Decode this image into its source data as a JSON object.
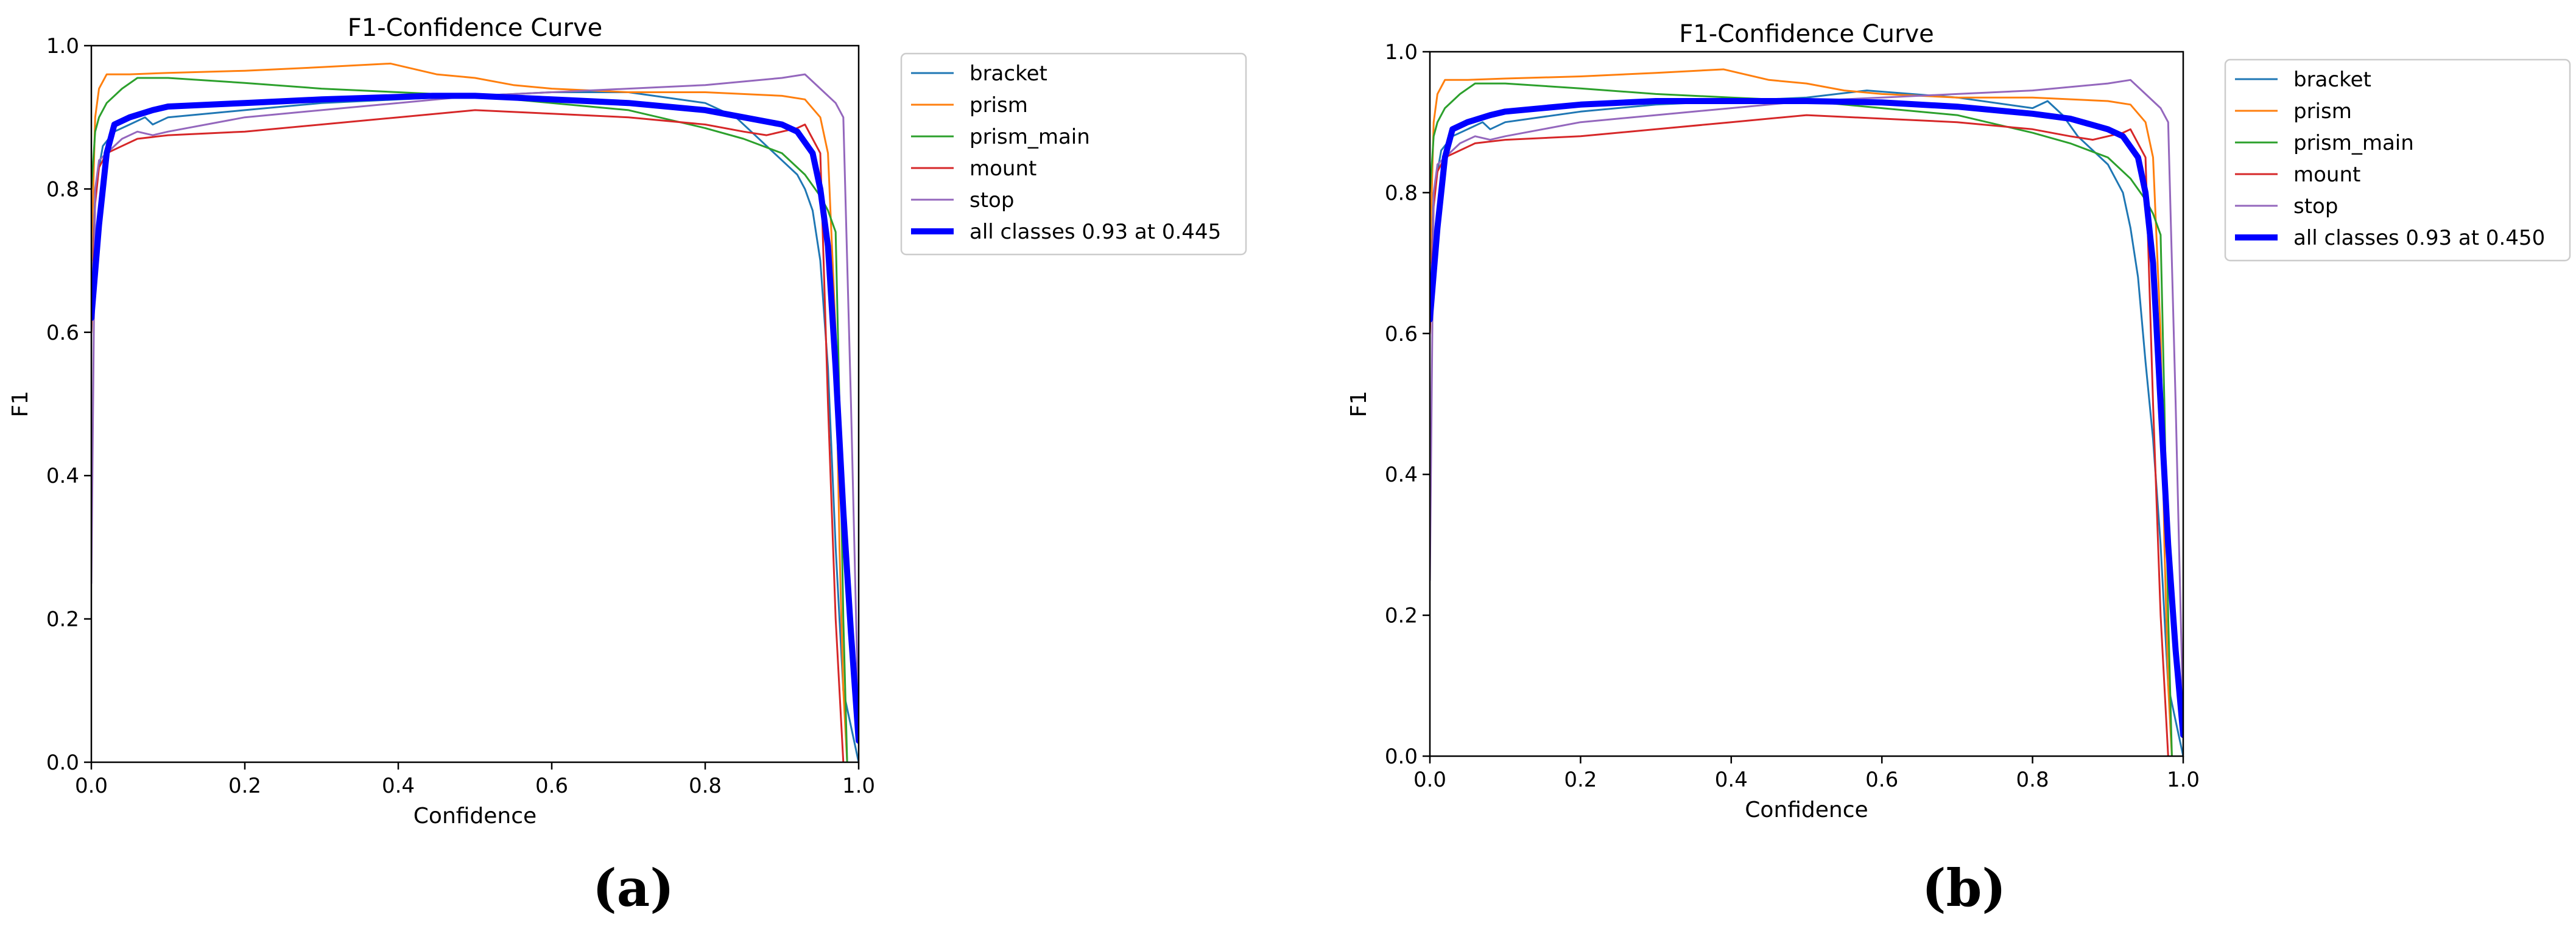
{
  "chart_data": [
    {
      "type": "line",
      "panel_label": "(a)",
      "title": "F1-Confidence Curve",
      "xlabel": "Confidence",
      "ylabel": "F1",
      "xlim": [
        0.0,
        1.0
      ],
      "ylim": [
        0.0,
        1.0
      ],
      "xticks": [
        "0.0",
        "0.2",
        "0.4",
        "0.6",
        "0.8",
        "1.0"
      ],
      "yticks": [
        "0.0",
        "0.2",
        "0.4",
        "0.6",
        "0.8",
        "1.0"
      ],
      "legend_position": "outside-top-right",
      "series": [
        {
          "name": "bracket",
          "color": "#1f77b4",
          "x": [
            0.0,
            0.005,
            0.015,
            0.03,
            0.05,
            0.07,
            0.08,
            0.1,
            0.2,
            0.3,
            0.4,
            0.5,
            0.6,
            0.7,
            0.8,
            0.82,
            0.84,
            0.86,
            0.88,
            0.9,
            0.92,
            0.93,
            0.94,
            0.95,
            0.96,
            0.97,
            0.98,
            0.99,
            1.0
          ],
          "y": [
            0.6,
            0.8,
            0.86,
            0.88,
            0.89,
            0.9,
            0.89,
            0.9,
            0.91,
            0.92,
            0.925,
            0.93,
            0.935,
            0.935,
            0.92,
            0.91,
            0.9,
            0.88,
            0.86,
            0.84,
            0.82,
            0.8,
            0.77,
            0.7,
            0.55,
            0.3,
            0.1,
            0.05,
            0.0
          ]
        },
        {
          "name": "prism",
          "color": "#ff7f0e",
          "x": [
            0.0,
            0.005,
            0.01,
            0.02,
            0.05,
            0.1,
            0.2,
            0.3,
            0.39,
            0.45,
            0.5,
            0.55,
            0.6,
            0.7,
            0.8,
            0.9,
            0.93,
            0.95,
            0.96,
            0.97,
            0.975,
            0.98,
            0.985
          ],
          "y": [
            0.7,
            0.9,
            0.94,
            0.96,
            0.96,
            0.962,
            0.965,
            0.97,
            0.975,
            0.96,
            0.955,
            0.945,
            0.94,
            0.935,
            0.935,
            0.93,
            0.925,
            0.9,
            0.85,
            0.6,
            0.3,
            0.1,
            0.0
          ]
        },
        {
          "name": "prism_main",
          "color": "#2ca02c",
          "x": [
            0.0,
            0.005,
            0.01,
            0.02,
            0.04,
            0.06,
            0.1,
            0.2,
            0.3,
            0.4,
            0.5,
            0.6,
            0.7,
            0.8,
            0.85,
            0.9,
            0.93,
            0.95,
            0.96,
            0.97,
            0.975,
            0.98,
            0.985
          ],
          "y": [
            0.8,
            0.88,
            0.9,
            0.92,
            0.94,
            0.955,
            0.955,
            0.948,
            0.94,
            0.935,
            0.93,
            0.92,
            0.91,
            0.885,
            0.87,
            0.85,
            0.82,
            0.79,
            0.77,
            0.74,
            0.5,
            0.2,
            0.0
          ]
        },
        {
          "name": "mount",
          "color": "#d62728",
          "x": [
            0.0,
            0.005,
            0.01,
            0.02,
            0.04,
            0.06,
            0.1,
            0.2,
            0.3,
            0.4,
            0.5,
            0.6,
            0.7,
            0.8,
            0.85,
            0.88,
            0.9,
            0.92,
            0.93,
            0.95,
            0.96,
            0.97,
            0.98
          ],
          "y": [
            0.6,
            0.78,
            0.83,
            0.85,
            0.86,
            0.87,
            0.875,
            0.88,
            0.89,
            0.9,
            0.91,
            0.905,
            0.9,
            0.89,
            0.88,
            0.875,
            0.88,
            0.885,
            0.89,
            0.85,
            0.5,
            0.2,
            0.0
          ]
        },
        {
          "name": "stop",
          "color": "#9467bd",
          "x": [
            0.0,
            0.005,
            0.01,
            0.02,
            0.04,
            0.06,
            0.08,
            0.1,
            0.2,
            0.3,
            0.4,
            0.5,
            0.6,
            0.7,
            0.8,
            0.9,
            0.93,
            0.95,
            0.97,
            0.98,
            0.99,
            1.0
          ],
          "y": [
            0.25,
            0.8,
            0.84,
            0.85,
            0.87,
            0.88,
            0.875,
            0.88,
            0.9,
            0.91,
            0.92,
            0.93,
            0.935,
            0.94,
            0.945,
            0.955,
            0.96,
            0.94,
            0.92,
            0.9,
            0.5,
            0.05
          ]
        },
        {
          "name": "all classes 0.93 at 0.445",
          "color": "#0000ff",
          "bold": true,
          "x": [
            0.0,
            0.01,
            0.02,
            0.03,
            0.05,
            0.08,
            0.1,
            0.2,
            0.3,
            0.445,
            0.5,
            0.6,
            0.7,
            0.8,
            0.85,
            0.9,
            0.92,
            0.94,
            0.95,
            0.96,
            0.97,
            0.98,
            0.99,
            1.0
          ],
          "y": [
            0.62,
            0.75,
            0.85,
            0.89,
            0.9,
            0.91,
            0.915,
            0.92,
            0.925,
            0.93,
            0.93,
            0.925,
            0.92,
            0.91,
            0.9,
            0.89,
            0.88,
            0.85,
            0.8,
            0.72,
            0.55,
            0.35,
            0.18,
            0.03
          ]
        }
      ]
    },
    {
      "type": "line",
      "panel_label": "(b)",
      "title": "F1-Confidence Curve",
      "xlabel": "Confidence",
      "ylabel": "F1",
      "xlim": [
        0.0,
        1.0
      ],
      "ylim": [
        0.0,
        1.0
      ],
      "xticks": [
        "0.0",
        "0.2",
        "0.4",
        "0.6",
        "0.8",
        "1.0"
      ],
      "yticks": [
        "0.0",
        "0.2",
        "0.4",
        "0.6",
        "0.8",
        "1.0"
      ],
      "legend_position": "outside-top-right",
      "series": [
        {
          "name": "bracket",
          "color": "#1f77b4",
          "x": [
            0.0,
            0.005,
            0.015,
            0.03,
            0.05,
            0.07,
            0.08,
            0.1,
            0.2,
            0.3,
            0.4,
            0.5,
            0.58,
            0.7,
            0.8,
            0.82,
            0.84,
            0.86,
            0.88,
            0.9,
            0.92,
            0.93,
            0.94,
            0.95,
            0.96,
            0.97,
            0.98,
            0.99,
            1.0
          ],
          "y": [
            0.6,
            0.8,
            0.86,
            0.88,
            0.89,
            0.9,
            0.89,
            0.9,
            0.915,
            0.925,
            0.93,
            0.935,
            0.945,
            0.935,
            0.92,
            0.93,
            0.91,
            0.88,
            0.86,
            0.84,
            0.8,
            0.75,
            0.68,
            0.56,
            0.45,
            0.3,
            0.1,
            0.05,
            0.0
          ]
        },
        {
          "name": "prism",
          "color": "#ff7f0e",
          "x": [
            0.0,
            0.005,
            0.01,
            0.02,
            0.05,
            0.1,
            0.2,
            0.3,
            0.39,
            0.45,
            0.5,
            0.55,
            0.6,
            0.7,
            0.8,
            0.9,
            0.93,
            0.95,
            0.96,
            0.97,
            0.975,
            0.98,
            0.985
          ],
          "y": [
            0.7,
            0.9,
            0.94,
            0.96,
            0.96,
            0.962,
            0.965,
            0.97,
            0.975,
            0.96,
            0.955,
            0.945,
            0.94,
            0.935,
            0.935,
            0.93,
            0.925,
            0.9,
            0.85,
            0.6,
            0.3,
            0.1,
            0.0
          ]
        },
        {
          "name": "prism_main",
          "color": "#2ca02c",
          "x": [
            0.0,
            0.005,
            0.01,
            0.02,
            0.04,
            0.06,
            0.1,
            0.2,
            0.3,
            0.4,
            0.5,
            0.6,
            0.7,
            0.8,
            0.85,
            0.9,
            0.93,
            0.95,
            0.96,
            0.97,
            0.975,
            0.98,
            0.985
          ],
          "y": [
            0.8,
            0.88,
            0.9,
            0.92,
            0.94,
            0.955,
            0.955,
            0.948,
            0.94,
            0.935,
            0.93,
            0.92,
            0.91,
            0.885,
            0.87,
            0.85,
            0.82,
            0.79,
            0.77,
            0.74,
            0.5,
            0.2,
            0.0
          ]
        },
        {
          "name": "mount",
          "color": "#d62728",
          "x": [
            0.0,
            0.005,
            0.01,
            0.02,
            0.04,
            0.06,
            0.1,
            0.2,
            0.3,
            0.4,
            0.5,
            0.6,
            0.7,
            0.8,
            0.85,
            0.88,
            0.9,
            0.92,
            0.93,
            0.95,
            0.96,
            0.97,
            0.98
          ],
          "y": [
            0.6,
            0.78,
            0.83,
            0.85,
            0.86,
            0.87,
            0.875,
            0.88,
            0.89,
            0.9,
            0.91,
            0.905,
            0.9,
            0.89,
            0.88,
            0.875,
            0.88,
            0.885,
            0.89,
            0.85,
            0.5,
            0.2,
            0.0
          ]
        },
        {
          "name": "stop",
          "color": "#9467bd",
          "x": [
            0.0,
            0.005,
            0.01,
            0.02,
            0.04,
            0.06,
            0.08,
            0.1,
            0.2,
            0.3,
            0.4,
            0.5,
            0.6,
            0.7,
            0.8,
            0.9,
            0.93,
            0.95,
            0.97,
            0.98,
            0.99,
            1.0
          ],
          "y": [
            0.25,
            0.8,
            0.84,
            0.85,
            0.87,
            0.88,
            0.875,
            0.88,
            0.9,
            0.91,
            0.92,
            0.93,
            0.935,
            0.94,
            0.945,
            0.955,
            0.96,
            0.94,
            0.92,
            0.9,
            0.5,
            0.05
          ]
        },
        {
          "name": "all classes 0.93 at 0.450",
          "color": "#0000ff",
          "bold": true,
          "x": [
            0.0,
            0.01,
            0.02,
            0.03,
            0.05,
            0.08,
            0.1,
            0.2,
            0.3,
            0.45,
            0.5,
            0.6,
            0.7,
            0.8,
            0.85,
            0.9,
            0.92,
            0.94,
            0.95,
            0.96,
            0.97,
            0.98,
            0.99,
            1.0
          ],
          "y": [
            0.62,
            0.75,
            0.85,
            0.89,
            0.9,
            0.91,
            0.915,
            0.925,
            0.93,
            0.93,
            0.93,
            0.928,
            0.922,
            0.912,
            0.905,
            0.89,
            0.88,
            0.85,
            0.8,
            0.7,
            0.5,
            0.3,
            0.15,
            0.03
          ]
        }
      ]
    }
  ]
}
